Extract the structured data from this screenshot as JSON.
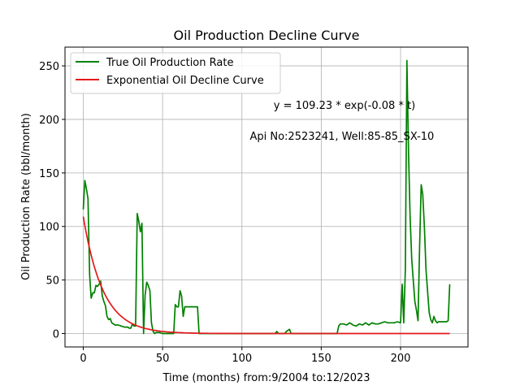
{
  "chart_data": {
    "type": "line",
    "title": "Oil Production Decline Curve",
    "xlabel": "Time (months) from:9/2004 to:12/2023",
    "ylabel": "Oil Production Rate (bbl/month)",
    "xlim": [
      -11.5,
      242.5
    ],
    "ylim": [
      -12.5,
      267.5
    ],
    "xticks": [
      0,
      50,
      100,
      150,
      200
    ],
    "yticks": [
      0,
      50,
      100,
      150,
      200,
      250
    ],
    "grid": true,
    "legend_position": "top-left",
    "annotations": [
      {
        "text": "y = 109.23 * exp(-0.08 * t)",
        "x": 120,
        "y": 210
      },
      {
        "text": "Api No:2523241, Well:85-85_SX-10",
        "x": 105,
        "y": 181
      }
    ],
    "series": [
      {
        "name": "True Oil Production Rate",
        "color": "#008000",
        "x": [
          0,
          1,
          2,
          3,
          4,
          5,
          6,
          7,
          8,
          9,
          10,
          11,
          12,
          13,
          14,
          15,
          16,
          17,
          18,
          19,
          20,
          22,
          24,
          26,
          28,
          29,
          30,
          31,
          32,
          33,
          34,
          35,
          36,
          37,
          38,
          39,
          40,
          41,
          42,
          43,
          44,
          45,
          46,
          47,
          48,
          50,
          52,
          54,
          55,
          56,
          57,
          58,
          59,
          60,
          61,
          62,
          63,
          64,
          65,
          66,
          67,
          68,
          69,
          70,
          71,
          72,
          73,
          80,
          90,
          100,
          110,
          120,
          121,
          122,
          123,
          125,
          127,
          128,
          129,
          130,
          131,
          132,
          135,
          140,
          145,
          150,
          155,
          158,
          159,
          160,
          161,
          162,
          164,
          166,
          168,
          170,
          172,
          174,
          176,
          178,
          180,
          182,
          184,
          186,
          188,
          190,
          192,
          194,
          196,
          198,
          200,
          201,
          202,
          203,
          204,
          205,
          206,
          207,
          208,
          209,
          210,
          211,
          212,
          213,
          214,
          215,
          216,
          217,
          218,
          219,
          220,
          221,
          222,
          223,
          224,
          225,
          226,
          227,
          228,
          229,
          230,
          231
        ],
        "y": [
          116,
          143,
          135,
          126,
          55,
          33,
          38,
          38,
          45,
          44,
          46,
          49,
          35,
          30,
          26,
          16,
          13,
          14,
          10,
          9,
          8,
          8,
          7,
          6,
          6,
          5,
          5,
          9,
          7,
          7,
          112,
          105,
          95,
          103,
          0,
          36,
          48,
          45,
          40,
          10,
          2,
          0,
          1,
          1,
          1,
          0,
          0,
          0,
          0,
          0,
          0,
          27,
          25,
          25,
          40,
          35,
          16,
          25,
          25,
          25,
          25,
          25,
          25,
          25,
          25,
          25,
          0,
          0,
          0,
          0,
          0,
          0,
          0,
          2,
          0,
          0,
          0,
          2,
          3,
          4,
          0,
          0,
          0,
          0,
          0,
          0,
          0,
          0,
          0,
          0,
          7,
          9,
          9,
          8,
          10,
          8,
          7,
          9,
          8,
          10,
          8,
          10,
          9,
          9,
          10,
          11,
          10,
          10,
          10,
          11,
          10,
          46,
          10,
          60,
          255,
          170,
          110,
          70,
          50,
          30,
          22,
          12,
          80,
          139,
          130,
          100,
          60,
          40,
          20,
          13,
          10,
          16,
          12,
          10,
          11,
          11,
          11,
          11,
          11,
          11,
          12,
          46
        ]
      },
      {
        "name": "Exponential Oil Decline Curve",
        "color": "#e31a1c",
        "function": {
          "a": 109.23,
          "b": -0.08,
          "t_start": 0,
          "t_end": 231
        }
      }
    ]
  }
}
